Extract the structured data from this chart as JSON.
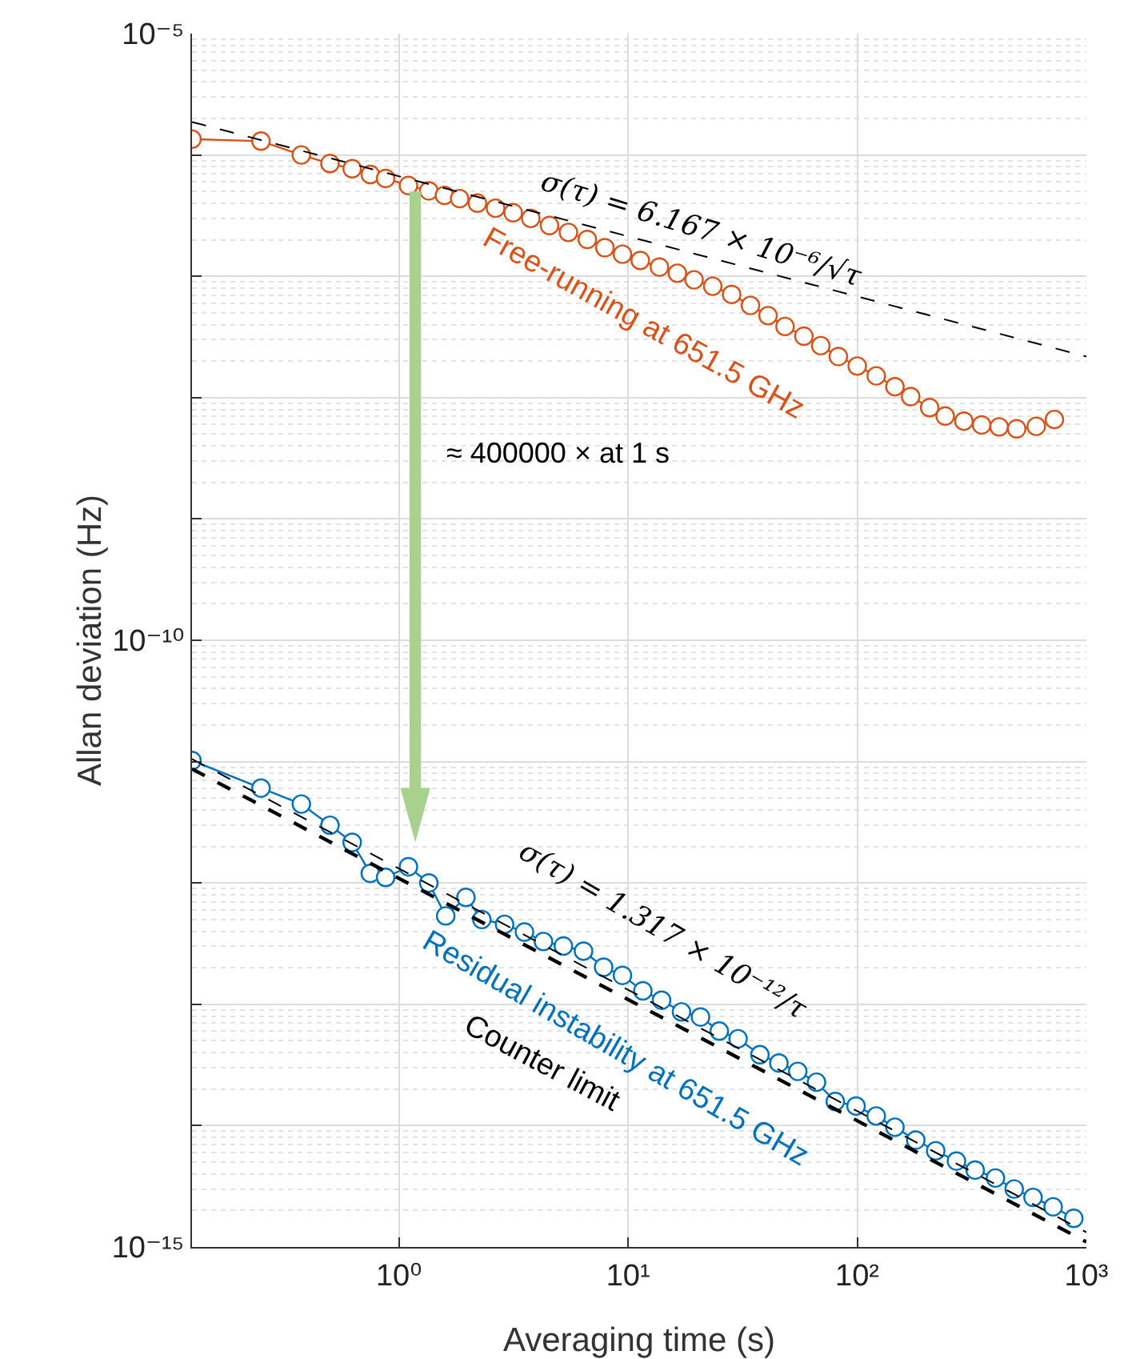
{
  "chart_data": {
    "type": "line",
    "xlabel": "Averaging time (s)",
    "ylabel": "Allan deviation (Hz)",
    "log": "xy",
    "grid": true,
    "legend": false,
    "xlim": [
      0.125,
      1000
    ],
    "xticks": [
      {
        "value": 1,
        "label": "10⁰"
      },
      {
        "value": 10,
        "label": "10¹"
      },
      {
        "value": 100,
        "label": "10²"
      },
      {
        "value": 1000,
        "label": "10³"
      }
    ],
    "ylim": [
      1e-15,
      1e-05
    ],
    "yticks": [
      {
        "value": 1e-15,
        "label": "10⁻¹⁵"
      },
      {
        "value": 1e-14,
        "label": null
      },
      {
        "value": 1e-13,
        "label": null
      },
      {
        "value": 1e-12,
        "label": null
      },
      {
        "value": 1e-11,
        "label": null
      },
      {
        "value": 1e-10,
        "label": "10⁻¹⁰"
      },
      {
        "value": 1e-09,
        "label": null
      },
      {
        "value": 1e-08,
        "label": null
      },
      {
        "value": 1e-07,
        "label": null
      },
      {
        "value": 1e-06,
        "label": null
      },
      {
        "value": 1e-05,
        "label": "10⁻⁵"
      }
    ],
    "annotations": [
      "≈ 400000 × at 1 s"
    ],
    "series": [
      {
        "name": "Free-running at 651.5 GHz",
        "color": "#d95319",
        "marker": "circle",
        "line_style": "solid",
        "x": [
          0.125,
          0.25,
          0.375,
          0.5,
          0.625,
          0.75,
          0.875,
          1.1,
          1.35,
          1.58,
          1.84,
          2.2,
          2.64,
          3.15,
          3.76,
          4.54,
          5.49,
          6.64,
          7.92,
          9.45,
          11.3,
          13.7,
          16.4,
          19.4,
          23.4,
          28.3,
          34.2,
          40.8,
          48.4,
          58.5,
          69.3,
          82.7,
          100,
          121,
          146,
          171,
          207,
          242,
          292,
          349,
          416,
          496,
          604,
          725
        ],
        "values": [
          1.35e-06,
          1.3e-06,
          1e-06,
          8.5e-07,
          7.7e-07,
          6.9e-07,
          6.4e-07,
          5.6e-07,
          5.06e-07,
          4.64e-07,
          4.37e-07,
          4.01e-07,
          3.64e-07,
          3.34e-07,
          3e-07,
          2.62e-07,
          2.3e-07,
          2.01e-07,
          1.72e-07,
          1.52e-07,
          1.35e-07,
          1.19e-07,
          1.06e-07,
          9.35e-08,
          8.28e-08,
          7.08e-08,
          5.75e-08,
          4.74e-08,
          3.86e-08,
          3.21e-08,
          2.68e-08,
          2.18e-08,
          1.82e-08,
          1.51e-08,
          1.23e-08,
          1.02e-08,
          8.27e-09,
          7.05e-09,
          6.4e-09,
          5.95e-09,
          5.74e-09,
          5.53e-09,
          5.8e-09,
          6.6e-09
        ]
      },
      {
        "name": "σ(τ) = 6.167 × 10⁻⁶/√τ",
        "color": "#000000",
        "marker": "none",
        "line_style": "dashed",
        "x": [
          0.125,
          1000
        ],
        "values": [
          1.87e-06,
          2.18e-08
        ]
      },
      {
        "name": "Residual instability at 651.5 GHz",
        "color": "#0072bd",
        "marker": "circle",
        "line_style": "solid",
        "x": [
          0.125,
          0.25,
          0.375,
          0.5,
          0.625,
          0.75,
          0.875,
          1.1,
          1.35,
          1.6,
          1.96,
          2.3,
          2.89,
          3.53,
          4.27,
          5.22,
          6.39,
          7.82,
          9.45,
          11.6,
          14.0,
          17.1,
          20.7,
          25.0,
          30.2,
          37.6,
          45.5,
          55.0,
          66.4,
          80.2,
          98.8,
          121,
          146,
          180,
          220,
          271,
          327,
          401,
          484,
          585,
          716,
          881
        ],
        "values": [
          1.02e-11,
          6.05e-12,
          4.47e-12,
          2.99e-12,
          2.16e-12,
          1.2e-12,
          1.11e-12,
          1.36e-12,
          1e-12,
          5.35e-13,
          7.6e-13,
          5e-13,
          4.56e-13,
          3.94e-13,
          3.29e-13,
          3.02e-13,
          2.74e-13,
          2.02e-13,
          1.73e-13,
          1.29e-13,
          1.08e-13,
          8.65e-14,
          7.85e-14,
          6.01e-14,
          5.2e-14,
          3.84e-14,
          3.28e-14,
          2.8e-14,
          2.28e-14,
          1.58e-14,
          1.45e-14,
          1.2e-14,
          9.7e-15,
          7.6e-15,
          6.2e-15,
          5.1e-15,
          4.3e-15,
          3.7e-15,
          3e-15,
          2.56e-15,
          2.14e-15,
          1.72e-15
        ]
      },
      {
        "name": "σ(τ) = 1.317 × 10⁻¹²/τ",
        "color": "#000000",
        "marker": "none",
        "line_style": "dashed",
        "x": [
          0.125,
          1000
        ],
        "values": [
          1.05e-11,
          1.32e-15
        ]
      },
      {
        "name": "Counter limit",
        "color": "#000000",
        "marker": "none",
        "line_style": "dashed",
        "x": [
          0.125,
          1000
        ],
        "values": [
          8.7e-12,
          1.1e-15
        ]
      }
    ]
  }
}
